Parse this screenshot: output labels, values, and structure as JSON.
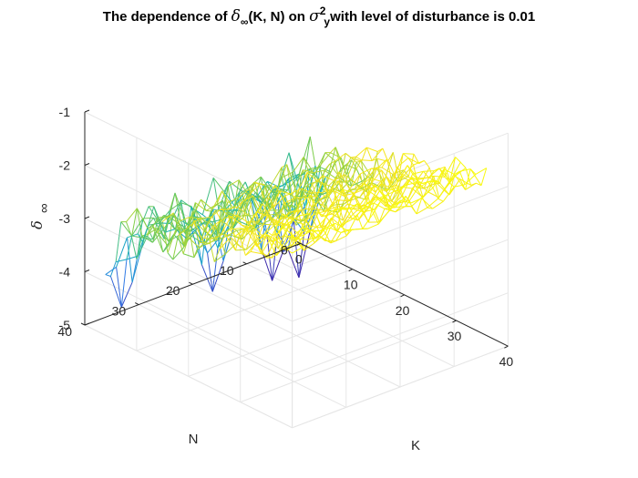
{
  "figure": {
    "title_prefix": "The dependence of",
    "title_delta": "δ",
    "title_sub": "∞",
    "title_mid": "(K, N) on",
    "title_sigma": "σ",
    "title_sigma_sub": "y",
    "title_sigma_sup": "2",
    "title_suffix": "with level of disturbance is 0.01"
  },
  "chart_data": {
    "type": "surface-mesh",
    "xlabel": "K",
    "ylabel": "N",
    "zlabel": "δ∞",
    "zlabel_symbol": "δ",
    "zlabel_subscript": "∞",
    "xlim": [
      0,
      40
    ],
    "ylim": [
      0,
      40
    ],
    "zlim": [
      -5,
      -1
    ],
    "xticks": [
      0,
      10,
      20,
      30,
      40
    ],
    "yticks": [
      0,
      10,
      20,
      30,
      40
    ],
    "zticks": [
      -5,
      -4,
      -3,
      -2,
      -1
    ],
    "grid": true,
    "colormap": "parula",
    "colormap_stops": [
      "#3e26a8",
      "#2f7ee8",
      "#12b2b8",
      "#7ccd4a",
      "#f4e41f",
      "#f9fb0e"
    ],
    "surface_K_range": [
      4,
      40
    ],
    "surface_N_range": [
      4,
      40
    ],
    "surface_K_step": 1,
    "surface_N_step": 2,
    "surface_model": "delta ≈ -3.1 + 0.02*(K-4) at N≈40 rising toward -1.6 at K=40, with noisy ridges and deep dips to ≈ -4.5…-5 at low K",
    "dips": [
      {
        "K": 5,
        "N": 38,
        "value": -4.5
      },
      {
        "K": 8,
        "N": 24,
        "value": -4.6
      },
      {
        "K": 7,
        "N": 12,
        "value": -4.9
      },
      {
        "K": 8,
        "N": 8,
        "value": -4.95
      }
    ]
  }
}
